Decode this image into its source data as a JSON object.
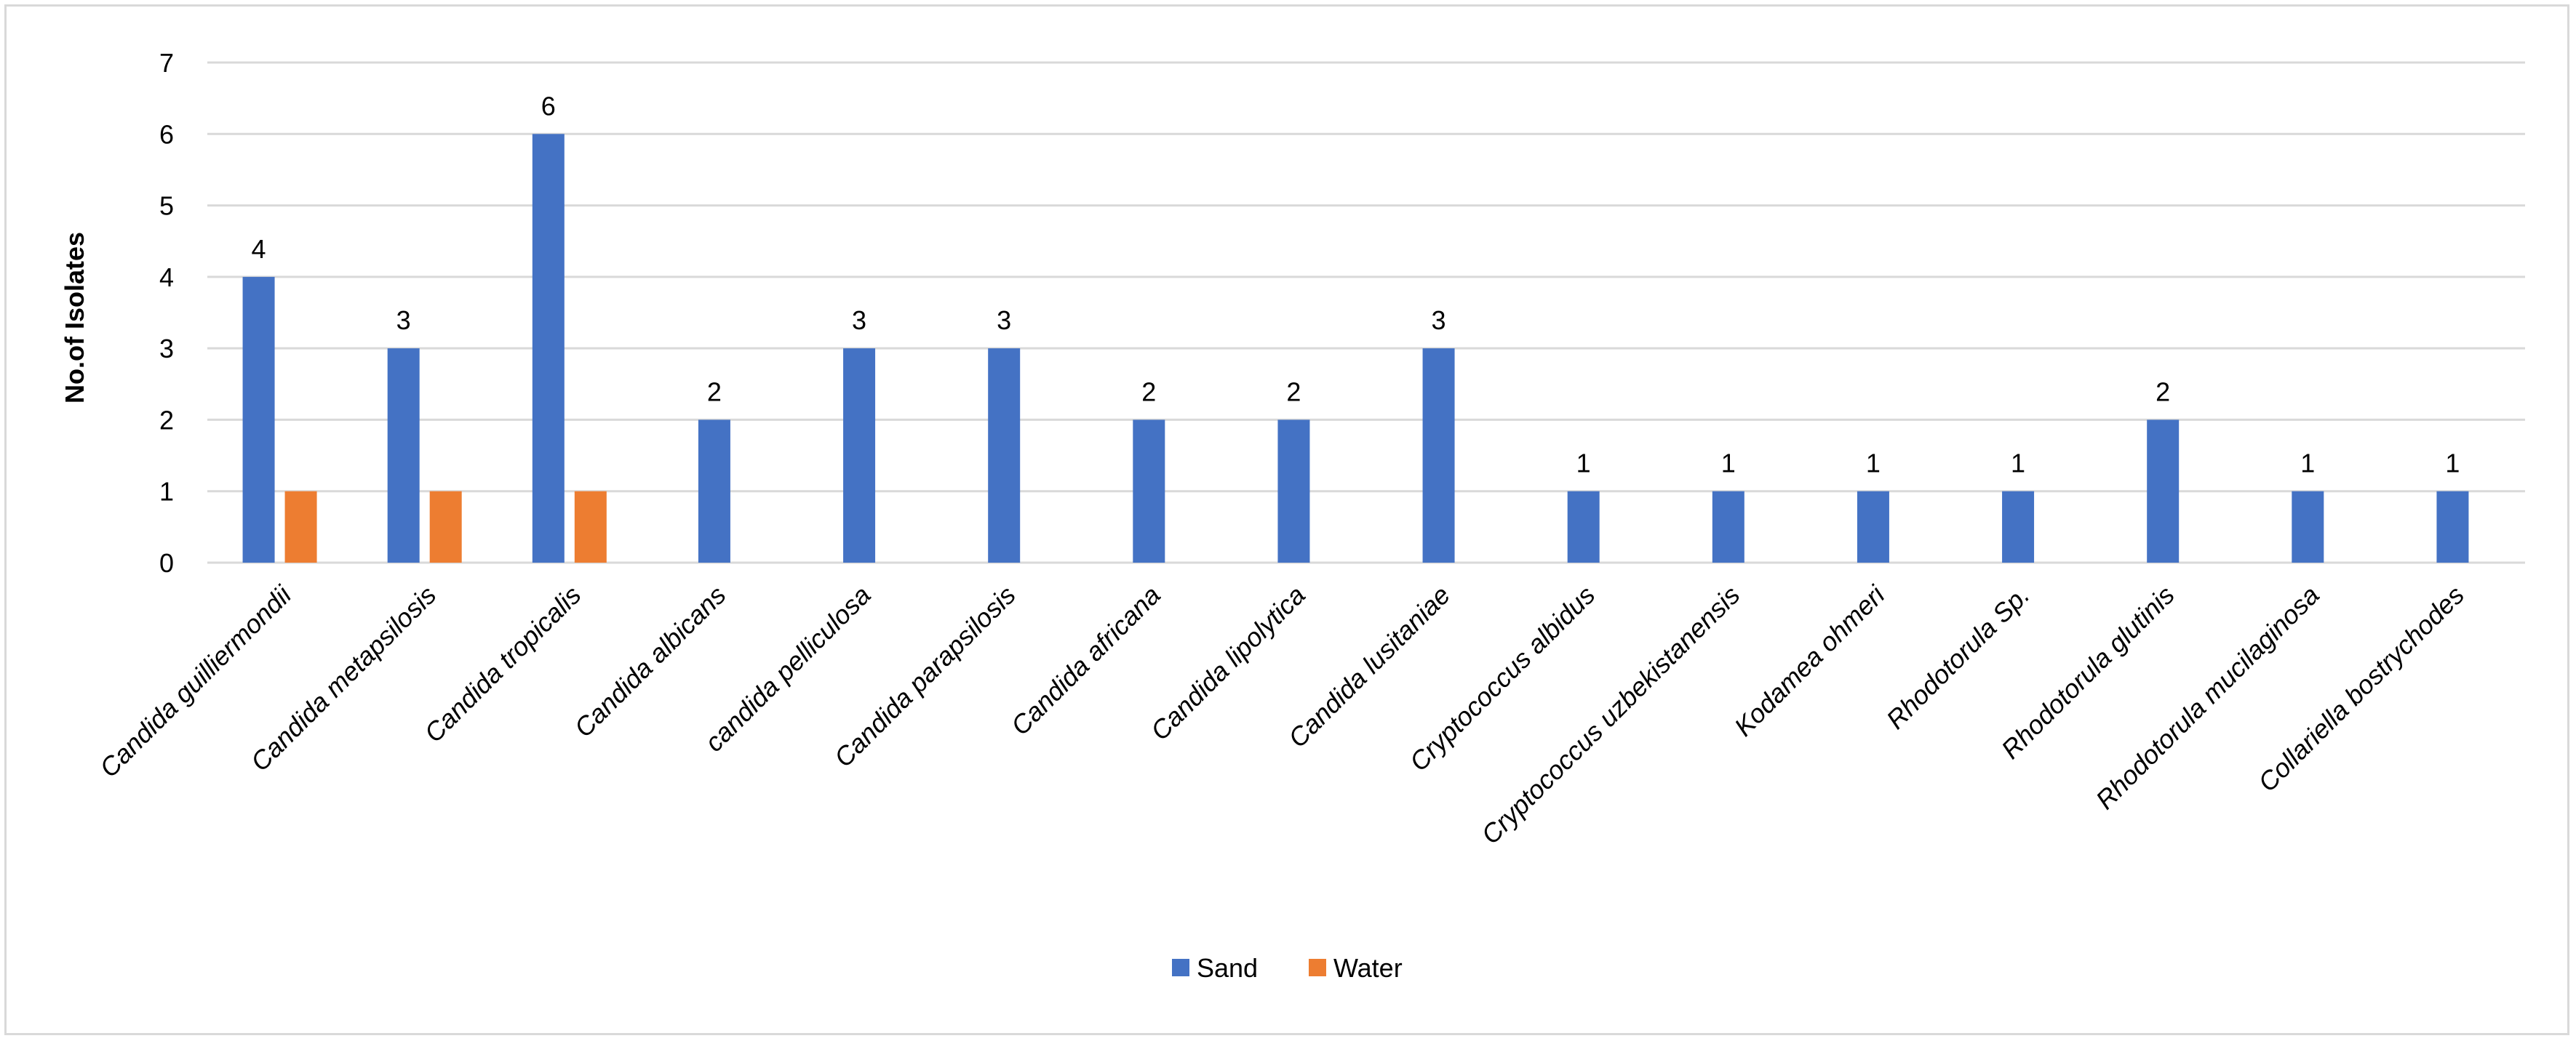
{
  "chart_data": {
    "type": "bar",
    "title": "",
    "xlabel": "",
    "ylabel": "No.of Isolates",
    "ylim": [
      0,
      7
    ],
    "yticks": [
      0,
      1,
      2,
      3,
      4,
      5,
      6,
      7
    ],
    "grid": true,
    "legend_position": "bottom-center",
    "categories": [
      "Candida guilliermondii",
      "Candida metapsilosis",
      "Candida tropicalis",
      "Candida albicans",
      "candida pelliculosa",
      "Candida parapsilosis",
      "Candida africana",
      "Candida lipolytica",
      "Candida lusitaniae",
      "Cryptococcus albidus",
      "Cryptococcus uzbekistanensis",
      "Kodamea ohmeri",
      "Rhodotorula Sp.",
      "Rhodotorula glutinis",
      "Rhodotorula mucilaginosa",
      "Collariella bostrychodes"
    ],
    "series": [
      {
        "name": "Sand",
        "color": "#4472c4",
        "values": [
          4,
          3,
          6,
          2,
          3,
          3,
          2,
          2,
          3,
          1,
          1,
          1,
          1,
          2,
          1,
          1
        ],
        "data_labels": [
          "4",
          "3",
          "6",
          "2",
          "3",
          "3",
          "2",
          "2",
          "3",
          "1",
          "1",
          "1",
          "1",
          "2",
          "1",
          "1"
        ]
      },
      {
        "name": "Water",
        "color": "#ed7d31",
        "values": [
          1,
          1,
          1,
          null,
          null,
          null,
          null,
          null,
          null,
          null,
          null,
          null,
          null,
          null,
          null,
          null
        ],
        "data_labels": []
      }
    ]
  }
}
